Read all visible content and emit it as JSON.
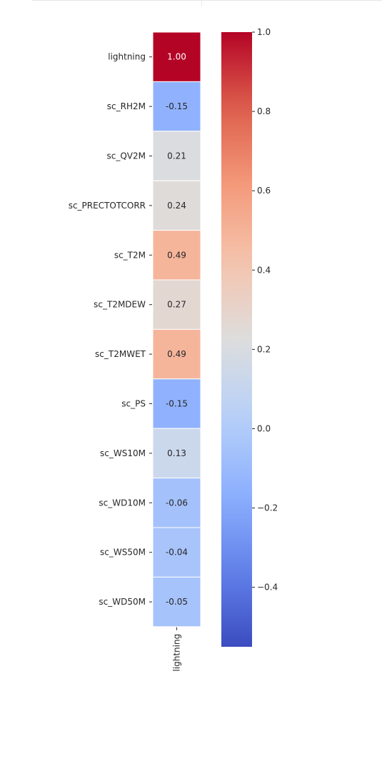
{
  "chart_data": {
    "type": "heatmap",
    "title": "",
    "rows": [
      "lightning",
      "sc_RH2M",
      "sc_QV2M",
      "sc_PRECTOTCORR",
      "sc_T2M",
      "sc_T2MDEW",
      "sc_T2MWET",
      "sc_PS",
      "sc_WS10M",
      "sc_WD10M",
      "sc_WS50M",
      "sc_WD50M"
    ],
    "columns": [
      "lightning"
    ],
    "values": [
      1.0,
      -0.15,
      0.21,
      0.24,
      0.49,
      0.27,
      0.49,
      -0.15,
      0.13,
      -0.06,
      -0.04,
      -0.05
    ],
    "value_labels": [
      "1.00",
      "-0.15",
      "0.21",
      "0.24",
      "0.49",
      "0.27",
      "0.49",
      "-0.15",
      "0.13",
      "-0.06",
      "-0.04",
      "-0.05"
    ],
    "colormap": "coolwarm",
    "color_range": [
      -0.55,
      1.0
    ],
    "colorbar_ticks": [
      1.0,
      0.8,
      0.6,
      0.4,
      0.2,
      0.0,
      -0.2,
      -0.4
    ],
    "colorbar_tick_labels": [
      "1.0",
      "0.8",
      "0.6",
      "0.4",
      "0.2",
      "0.0",
      "−0.2",
      "−0.4"
    ],
    "cell_border_color": "#ffffff"
  }
}
